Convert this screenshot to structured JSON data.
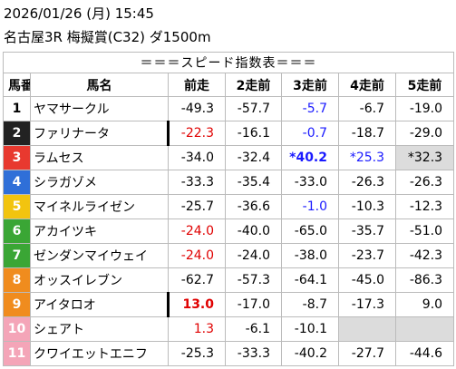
{
  "header": {
    "datetime": "2026/01/26 (月) 15:45",
    "race": "名古屋3R 梅擬賞(C32) ダ1500m"
  },
  "table": {
    "title": "＝＝＝スピード指数表＝＝＝",
    "columns": [
      "馬番",
      "馬名",
      "前走",
      "2走前",
      "3走前",
      "4走前",
      "5走前"
    ],
    "rows": [
      {
        "number": "1",
        "frame_color": "#ffffff",
        "number_color": "#000000",
        "name": "ヤマサークル",
        "scores": [
          "-49.3",
          "-57.7",
          {
            "text": "-5.7",
            "color": "#1a1aff"
          },
          "-6.7",
          "-19.0"
        ]
      },
      {
        "number": "2",
        "frame_color": "#222222",
        "number_color": "#ffffff",
        "name": "ファリナータ",
        "scores": [
          {
            "text": "-22.3",
            "color": "#e00000",
            "bar": true
          },
          "-16.1",
          {
            "text": "-0.7",
            "color": "#1a1aff"
          },
          "-18.7",
          "-29.0"
        ]
      },
      {
        "number": "3",
        "frame_color": "#e8392f",
        "number_color": "#ffffff",
        "name": "ラムセス",
        "scores": [
          "-34.0",
          "-32.4",
          {
            "text": "*40.2",
            "color": "#1a1aff",
            "bold": true
          },
          {
            "text": "*25.3",
            "color": "#1a1aff"
          },
          {
            "text": "*32.3",
            "bg": "#dcdcdc"
          }
        ]
      },
      {
        "number": "4",
        "frame_color": "#2f6fd8",
        "number_color": "#ffffff",
        "name": "シラガゾメ",
        "scores": [
          "-33.3",
          "-35.4",
          "-33.0",
          "-26.3",
          "-26.3"
        ]
      },
      {
        "number": "5",
        "frame_color": "#f2c40f",
        "number_color": "#ffffff",
        "name": "マイネルライゼン",
        "scores": [
          "-25.7",
          "-36.6",
          {
            "text": "-1.0",
            "color": "#1a1aff"
          },
          "-10.3",
          "-12.3"
        ]
      },
      {
        "number": "6",
        "frame_color": "#3aa635",
        "number_color": "#ffffff",
        "name": "アカイツキ",
        "scores": [
          {
            "text": "-24.0",
            "color": "#e00000"
          },
          "-40.0",
          "-65.0",
          "-35.7",
          "-51.0"
        ]
      },
      {
        "number": "7",
        "frame_color": "#3aa635",
        "number_color": "#ffffff",
        "name": "ゼンダンマイウェイ",
        "scores": [
          {
            "text": "-24.0",
            "color": "#e00000"
          },
          "-24.0",
          "-38.0",
          "-23.7",
          "-42.3"
        ]
      },
      {
        "number": "8",
        "frame_color": "#f08c1e",
        "number_color": "#ffffff",
        "name": "オッスイレブン",
        "scores": [
          "-62.7",
          "-57.3",
          "-64.1",
          "-45.0",
          "-86.3"
        ]
      },
      {
        "number": "9",
        "frame_color": "#f08c1e",
        "number_color": "#ffffff",
        "name": "アイタロオ",
        "scores": [
          {
            "text": "13.0",
            "color": "#e00000",
            "bold": true,
            "bar": true
          },
          "-17.0",
          "-8.7",
          "-17.3",
          "9.0"
        ]
      },
      {
        "number": "10",
        "frame_color": "#f4a5b8",
        "number_color": "#ffffff",
        "name": "シェアト",
        "scores": [
          {
            "text": "1.3",
            "color": "#e00000"
          },
          "-6.1",
          "-10.1",
          {
            "text": null,
            "bg": "#dcdcdc"
          },
          {
            "text": null,
            "bg": "#dcdcdc"
          }
        ]
      },
      {
        "number": "11",
        "frame_color": "#f4a5b8",
        "number_color": "#ffffff",
        "name": "クワイエットエニフ",
        "scores": [
          "-25.3",
          "-33.3",
          "-40.2",
          "-27.7",
          "-44.6"
        ]
      }
    ]
  }
}
